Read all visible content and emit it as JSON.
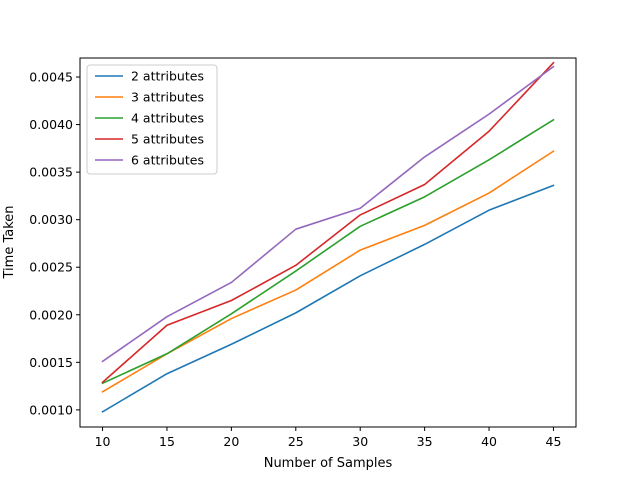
{
  "chart_data": {
    "type": "line",
    "title": "",
    "xlabel": "Number of Samples",
    "ylabel": "Time Taken",
    "x": [
      10,
      15,
      20,
      25,
      30,
      35,
      40,
      45
    ],
    "xlim": [
      8.25,
      46.75
    ],
    "ylim": [
      0.00082,
      0.0047
    ],
    "xticks": [
      10,
      15,
      20,
      25,
      30,
      35,
      40,
      45
    ],
    "yticks": [
      0.001,
      0.0015,
      0.002,
      0.0025,
      0.003,
      0.0035,
      0.004,
      0.0045
    ],
    "ytick_labels": [
      "0.0010",
      "0.0015",
      "0.0020",
      "0.0025",
      "0.0030",
      "0.0035",
      "0.0040",
      "0.0045"
    ],
    "grid": false,
    "legend_position": "upper-left",
    "series": [
      {
        "name": "2 attributes",
        "color": "#1f77b4",
        "values": [
          0.00098,
          0.00138,
          0.00169,
          0.00202,
          0.00241,
          0.00274,
          0.0031,
          0.00336
        ]
      },
      {
        "name": "3 attributes",
        "color": "#ff7f0e",
        "values": [
          0.00119,
          0.00159,
          0.00196,
          0.00226,
          0.00268,
          0.00294,
          0.00328,
          0.00372
        ]
      },
      {
        "name": "4 attributes",
        "color": "#2ca02c",
        "values": [
          0.00128,
          0.00159,
          0.00201,
          0.00246,
          0.00293,
          0.00324,
          0.00363,
          0.00405
        ]
      },
      {
        "name": "5 attributes",
        "color": "#d62728",
        "values": [
          0.00129,
          0.00189,
          0.00215,
          0.00252,
          0.00305,
          0.00337,
          0.00393,
          0.00465
        ]
      },
      {
        "name": "6 attributes",
        "color": "#9467bd",
        "values": [
          0.00151,
          0.00198,
          0.00234,
          0.0029,
          0.00312,
          0.00366,
          0.00411,
          0.00461
        ]
      }
    ]
  }
}
